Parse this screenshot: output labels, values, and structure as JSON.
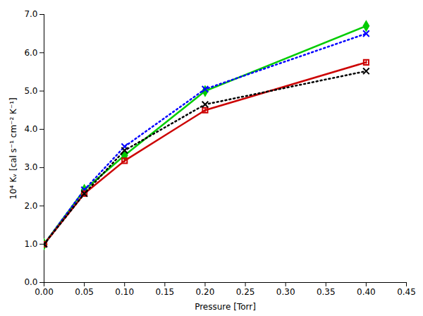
{
  "chart_data": {
    "type": "line",
    "xlabel": "Pressure [Torr]",
    "ylabel": "10⁴ Kᵥ [cal s⁻¹ cm⁻² K⁻¹]",
    "x": [
      0.0,
      0.05,
      0.1,
      0.2,
      0.4
    ],
    "xlim": [
      0.0,
      0.45
    ],
    "ylim": [
      0.0,
      7.0
    ],
    "xticks": [
      {
        "value": 0.0,
        "label": "0.00"
      },
      0.05,
      {
        "value": 0.1,
        "label": "0.10"
      },
      0.15,
      {
        "value": 0.2,
        "label": "0.20"
      },
      0.25,
      {
        "value": 0.3,
        "label": "0.30"
      },
      0.35,
      {
        "value": 0.4,
        "label": "0.40"
      },
      0.45
    ],
    "yticks": [
      {
        "value": 0.0,
        "label": "0.0"
      },
      {
        "value": 1.0,
        "label": "1.0"
      },
      {
        "value": 2.0,
        "label": "2.0"
      },
      {
        "value": 3.0,
        "label": "3.0"
      },
      {
        "value": 4.0,
        "label": "4.0"
      },
      {
        "value": 5.0,
        "label": "5.0"
      },
      {
        "value": 6.0,
        "label": "6.0"
      },
      {
        "value": 7.0,
        "label": "7.0"
      }
    ],
    "grid": false,
    "series": [
      {
        "color": "#00cc00",
        "marker": "diamond",
        "line_style": "solid",
        "values": [
          1.0,
          2.42,
          3.32,
          5.0,
          6.7
        ],
        "yerr": [
          0.0,
          0.05,
          0.05,
          0.05,
          0.07
        ]
      },
      {
        "color": "#0000ff",
        "marker": "x",
        "line_style": "dotted",
        "values": [
          1.0,
          2.42,
          3.55,
          5.05,
          6.5
        ]
      },
      {
        "color": "#cc0000",
        "marker": "open_square",
        "line_style": "solid",
        "values": [
          1.0,
          2.32,
          3.18,
          4.5,
          5.75
        ],
        "yerr": [
          0.0,
          0.05,
          0.05,
          0.07,
          0.05
        ]
      },
      {
        "color": "#000000",
        "marker": "x",
        "line_style": "dotted",
        "values": [
          1.0,
          2.32,
          3.45,
          4.65,
          5.52
        ]
      }
    ]
  }
}
